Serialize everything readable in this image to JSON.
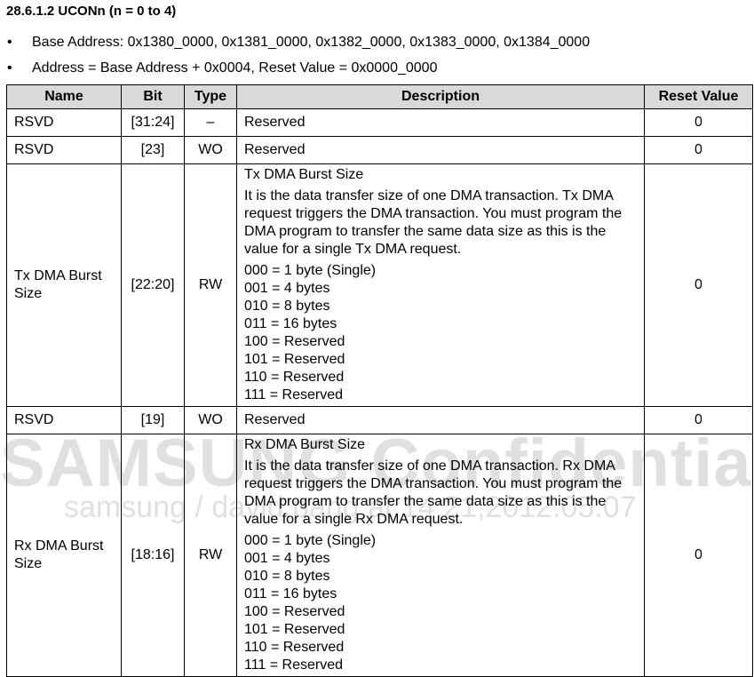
{
  "heading": "28.6.1.2 UCONn (n = 0 to 4)",
  "bullets": [
    "Base Address: 0x1380_0000, 0x1381_0000, 0x1382_0000, 0x1383_0000, 0x1384_0000",
    "Address = Base Address + 0x0004, Reset Value = 0x0000_0000"
  ],
  "table": {
    "headers": [
      "Name",
      "Bit",
      "Type",
      "Description",
      "Reset Value"
    ],
    "rows": [
      {
        "name": "RSVD",
        "bit": "[31:24]",
        "type": "–",
        "desc_title": "Reserved",
        "reset": "0"
      },
      {
        "name": "RSVD",
        "bit": "[23]",
        "type": "WO",
        "desc_title": "Reserved",
        "reset": "0"
      },
      {
        "name": "Tx DMA Burst Size",
        "bit": "[22:20]",
        "type": "RW",
        "desc_title": "Tx DMA Burst Size",
        "desc_body": "It is the data transfer size of one DMA transaction. Tx DMA request triggers the DMA transaction. You must program the DMA program to transfer the same data size as this is the value for a single Tx DMA request.",
        "values": [
          "000 = 1 byte (Single)",
          "001 = 4 bytes",
          "010 = 8 bytes",
          "011 = 16 bytes",
          "100 = Reserved",
          "101 = Reserved",
          "110 = Reserved",
          "111 = Reserved"
        ],
        "reset": "0"
      },
      {
        "name": "RSVD",
        "bit": "[19]",
        "type": "WO",
        "desc_title": "Reserved",
        "reset": "0"
      },
      {
        "name": "Rx DMA Burst Size",
        "bit": "[18:16]",
        "type": "RW",
        "desc_title": "Rx DMA Burst Size",
        "desc_body": "It is the data transfer size of one DMA transaction. Rx DMA request triggers the DMA transaction. You must program the DMA program to transfer the same data size as this is the value for a single Rx DMA request.",
        "values": [
          "000 = 1 byte (Single)",
          "001 = 4 bytes",
          "010 = 8 bytes",
          "011 = 16 bytes",
          "100 = Reserved",
          "101 = Reserved",
          "110 = Reserved",
          "111 = Reserved"
        ],
        "reset": "0"
      }
    ]
  },
  "watermark": {
    "line1": "SAMSUNG Confidential",
    "line2": "samsung / david.pang at 14:21,2012.05.07"
  }
}
